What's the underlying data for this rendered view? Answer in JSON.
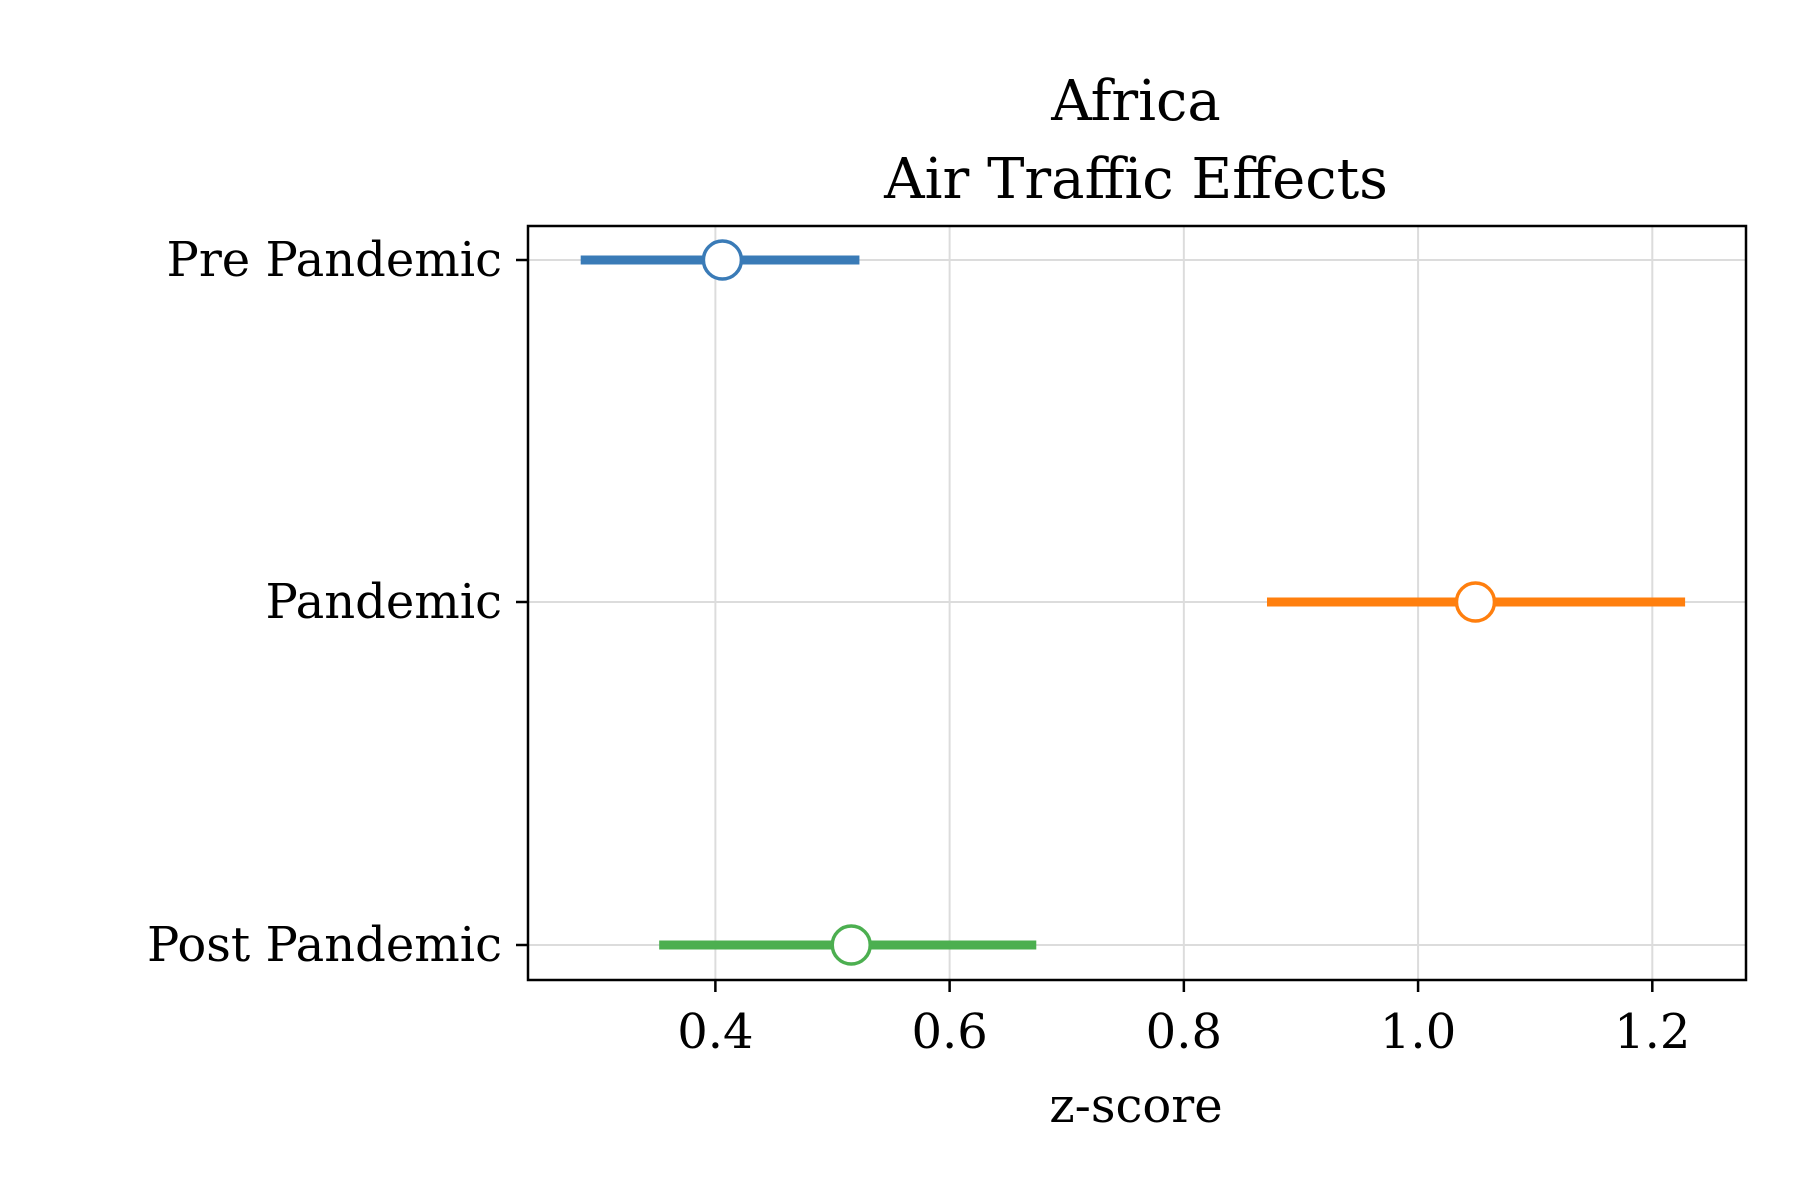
{
  "chart_data": {
    "type": "errorbar",
    "title_lines": [
      "Africa",
      "Air Traffic Effects"
    ],
    "xlabel": "z-score",
    "ylabel": "",
    "xlim": [
      0.24,
      1.28
    ],
    "xticks": [
      0.4,
      0.6,
      0.8,
      1.0,
      1.2
    ],
    "xtick_labels": [
      "0.4",
      "0.6",
      "0.8",
      "1.0",
      "1.2"
    ],
    "grid": true,
    "categories": [
      "Pre Pandemic",
      "Pandemic",
      "Post Pandemic"
    ],
    "series": [
      {
        "category": "Pre Pandemic",
        "estimate": 0.406,
        "ci_low": 0.285,
        "ci_high": 0.523,
        "color": "#3a7bb7"
      },
      {
        "category": "Pandemic",
        "estimate": 1.049,
        "ci_low": 0.871,
        "ci_high": 1.228,
        "color": "#ff7f0e"
      },
      {
        "category": "Post Pandemic",
        "estimate": 0.516,
        "ci_low": 0.352,
        "ci_high": 0.674,
        "color": "#4caf50"
      }
    ]
  }
}
